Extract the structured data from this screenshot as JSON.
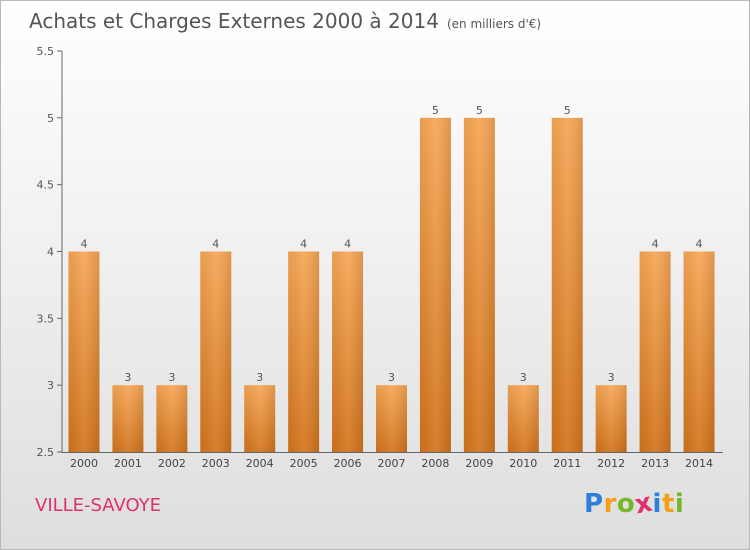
{
  "header": {
    "title": "Achats et Charges Externes 2000 à 2014",
    "unit": "(en milliers d'€)"
  },
  "commune": "VILLE-SAVOYE",
  "logo": {
    "letters": [
      "P",
      "r",
      "o",
      "x",
      "i",
      "t",
      "i"
    ],
    "colors": [
      "#2e7fd8",
      "#f2a01c",
      "#74b827",
      "#e0306a",
      "#2e7fd8",
      "#f2a01c",
      "#74b827"
    ]
  },
  "chart_data": {
    "type": "bar",
    "title": "Achats et Charges Externes 2000 à 2014",
    "categories": [
      "2000",
      "2001",
      "2002",
      "2003",
      "2004",
      "2005",
      "2006",
      "2007",
      "2008",
      "2009",
      "2010",
      "2011",
      "2012",
      "2013",
      "2014"
    ],
    "values": [
      4,
      3,
      3,
      4,
      3,
      4,
      4,
      3,
      5,
      5,
      3,
      5,
      3,
      4,
      4
    ],
    "value_labels": [
      "4",
      "3",
      "3",
      "4",
      "3",
      "4",
      "4",
      "3",
      "5",
      "5",
      "3",
      "5",
      "3",
      "4",
      "4"
    ],
    "yticks": [
      "2.5",
      "3",
      "3.5",
      "4",
      "4.5",
      "5",
      "5.5"
    ],
    "ylim": [
      2.5,
      5.5
    ],
    "grid": false,
    "colors": {
      "bar_top": "#f6a655",
      "bar_bottom": "#d2741c",
      "axis": "#666666",
      "text": "#555555"
    }
  }
}
